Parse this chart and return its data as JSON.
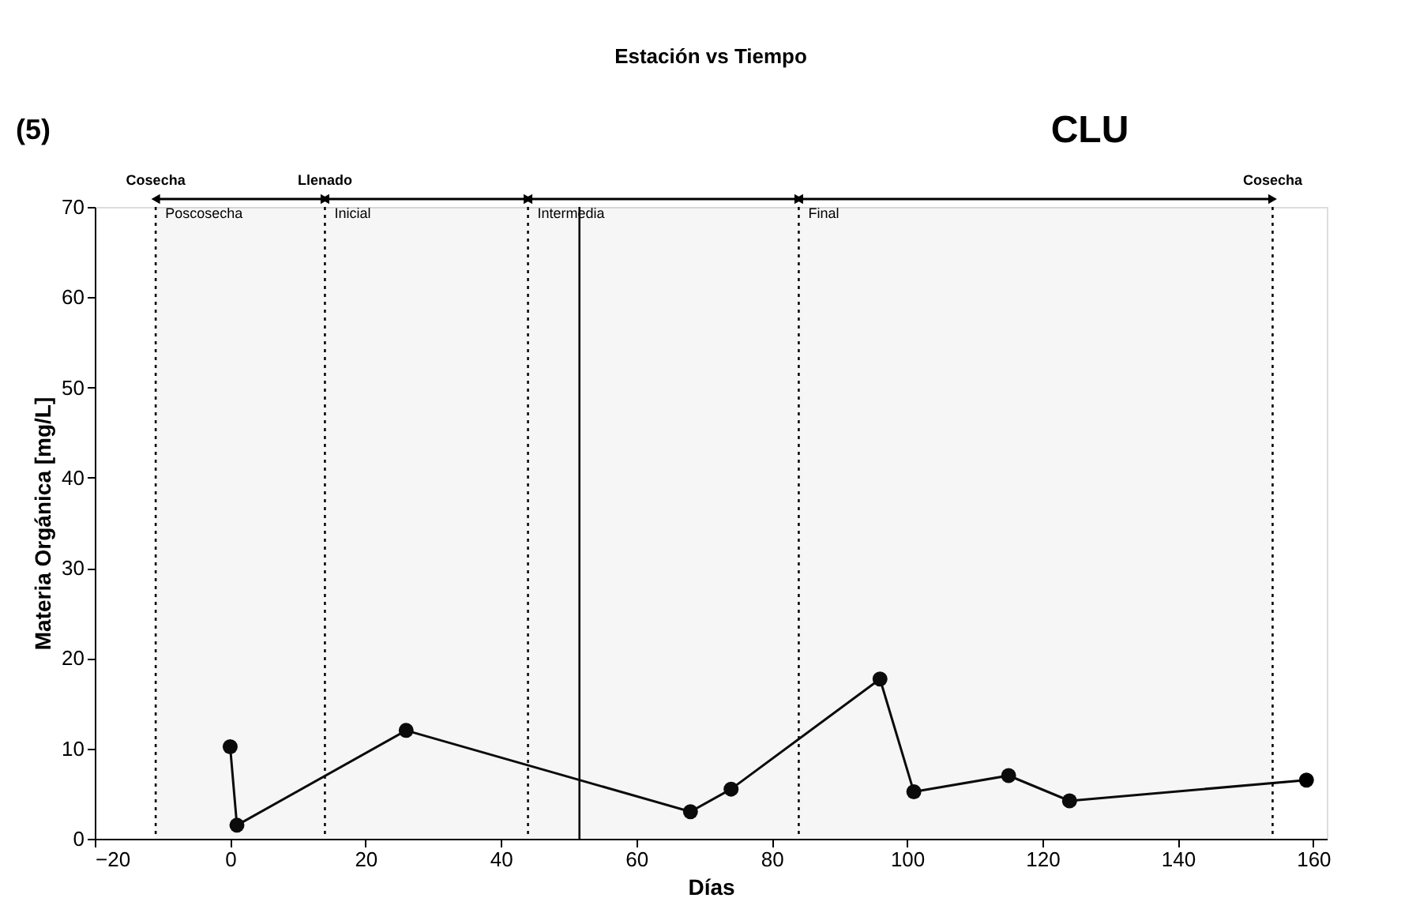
{
  "chart_data": {
    "type": "line",
    "title": "Estación vs Tiempo",
    "xlabel": "Días",
    "ylabel": "Materia Orgánica [mg/L]",
    "x": [
      0,
      1,
      26,
      68,
      74,
      96,
      101,
      115,
      124,
      159
    ],
    "series": [
      {
        "color": "#000000",
        "values": [
          10.2,
          1.5,
          12,
          3,
          5.5,
          17.7,
          5.2,
          7,
          4.2,
          6.5
        ]
      }
    ],
    "xlim": [
      -20,
      162
    ],
    "xticks": [
      -20,
      0,
      20,
      40,
      60,
      80,
      100,
      120,
      140,
      160
    ],
    "ylim": [
      0,
      70
    ],
    "yticks": [
      0,
      10,
      20,
      30,
      40,
      50,
      60,
      70
    ],
    "marker": "circle",
    "line_style": "solid",
    "grid": false,
    "ref_lines": [
      {
        "axis": "x",
        "value": -11,
        "label": "Cosecha",
        "line_style": "dotted"
      },
      {
        "axis": "x",
        "value": 14,
        "label": "Llenado",
        "line_style": "dotted"
      },
      {
        "axis": "x",
        "value": 44,
        "label": null,
        "line_style": "dotted"
      },
      {
        "axis": "x",
        "value": 51.6,
        "label": null,
        "line_style": "solid"
      },
      {
        "axis": "x",
        "value": 84,
        "label": null,
        "line_style": "dotted"
      },
      {
        "axis": "x",
        "value": 154,
        "label": "Cosecha",
        "line_style": "dotted"
      }
    ],
    "bands": [
      {
        "axis": "x",
        "from": -11,
        "to": 14,
        "label": "Poscosecha"
      },
      {
        "axis": "x",
        "from": 14,
        "to": 44,
        "label": "Inicial"
      },
      {
        "axis": "x",
        "from": 44,
        "to": 84,
        "label": "Intermedia"
      },
      {
        "axis": "x",
        "from": 84,
        "to": 154,
        "label": "Final"
      }
    ],
    "annotations": [
      "(5)",
      "CLU"
    ]
  }
}
